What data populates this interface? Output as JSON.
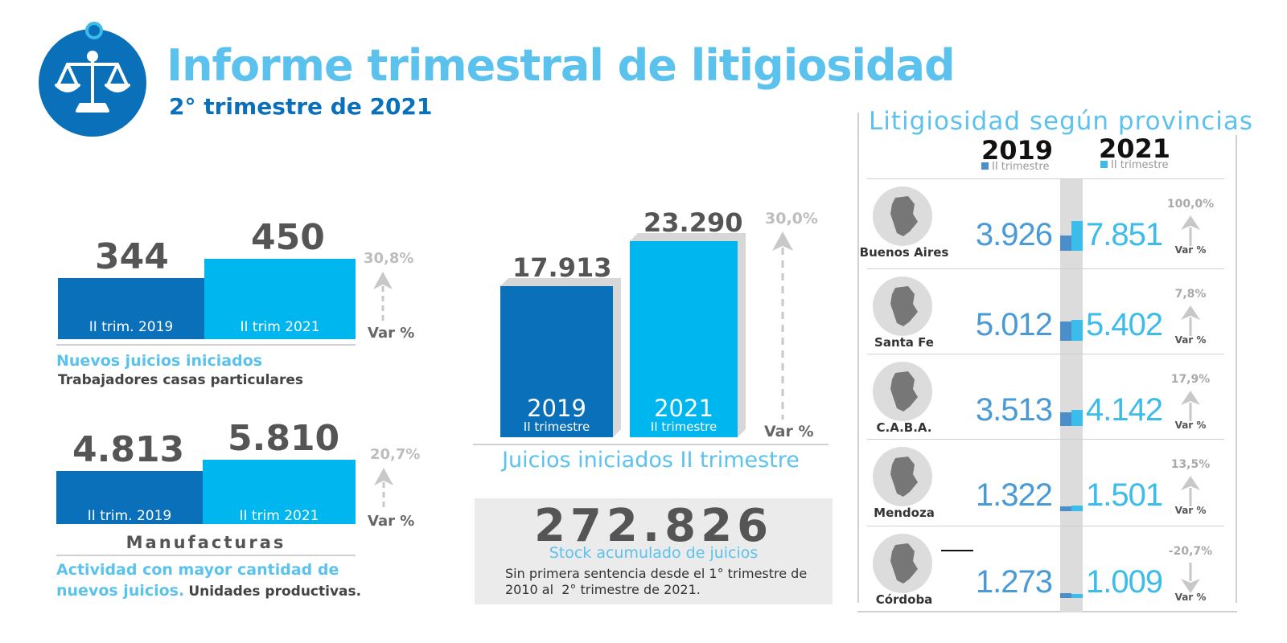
{
  "header": {
    "title": "Informe trimestral de litigiosidad",
    "subtitle": "2° trimestre de 2021"
  },
  "colors": {
    "dark_blue": "#0a70b9",
    "light_blue": "#00b6ef",
    "gray_text": "#555555",
    "pct_gray": "#bdbdbd"
  },
  "chart_data": [
    {
      "type": "bar",
      "categories": [
        "II trim. 2019",
        "II trim 2021"
      ],
      "values": [
        344,
        450
      ],
      "value_labels": [
        "344",
        "450"
      ],
      "variation": "30,8%",
      "variation_label": "Var %",
      "title": "Nuevos juicios iniciados",
      "subtitle": "Trabajadores casas particulares"
    },
    {
      "type": "bar",
      "categories": [
        "II trim. 2019",
        "II trim 2021"
      ],
      "values": [
        4813,
        5810
      ],
      "value_labels": [
        "4.813",
        "5.810"
      ],
      "variation": "20,7%",
      "variation_label": "Var %",
      "title": "Manufacturas",
      "caption_blue": "Actividad con mayor cantidad de nuevos juicios.",
      "caption_blue_line1": "Actividad con mayor cantidad de",
      "caption_blue_line2": "nuevos juicios.",
      "caption_dark": "Unidades productivas."
    },
    {
      "type": "bar",
      "categories": [
        "2019",
        "2021"
      ],
      "category_sublabels": [
        "II trimestre",
        "II trimestre"
      ],
      "values": [
        17913,
        23290
      ],
      "value_labels": [
        "17.913",
        "23.290"
      ],
      "variation": "30,0%",
      "variation_label": "Var %",
      "title": "Juicios iniciados II trimestre"
    },
    {
      "type": "table",
      "title": "Litigiosidad según provincias",
      "columns": [
        "2019",
        "2021"
      ],
      "column_sublabels": [
        "II trimestre",
        "II trimestre"
      ],
      "rows": [
        {
          "province": "Buenos Aires",
          "v2019": 3926,
          "v2021": 7851,
          "label2019": "3.926",
          "label2021": "7.851",
          "variation": "100,0%",
          "direction": "up",
          "var_label": "Var %"
        },
        {
          "province": "Santa Fe",
          "v2019": 5012,
          "v2021": 5402,
          "label2019": "5.012",
          "label2021": "5.402",
          "variation": "7,8%",
          "direction": "up",
          "var_label": "Var %"
        },
        {
          "province": "C.A.B.A.",
          "v2019": 3513,
          "v2021": 4142,
          "label2019": "3.513",
          "label2021": "4.142",
          "variation": "17,9%",
          "direction": "up",
          "var_label": "Var %"
        },
        {
          "province": "Mendoza",
          "v2019": 1322,
          "v2021": 1501,
          "label2019": "1.322",
          "label2021": "1.501",
          "variation": "13,5%",
          "direction": "up",
          "var_label": "Var %"
        },
        {
          "province": "Córdoba",
          "v2019": 1273,
          "v2021": 1009,
          "label2019": "1.273",
          "label2021": "1.009",
          "variation": "-20,7%",
          "direction": "down",
          "var_label": "Var %"
        }
      ]
    }
  ],
  "stock": {
    "value": "272.826",
    "title": "Stock acumulado de juicios",
    "line1": "Sin primera sentencia desde el 1° trimestre de",
    "line2": "2010 al  2° trimestre de 2021."
  },
  "icons": {
    "logo": "scales-of-justice-icon",
    "up": "arrow-up-icon",
    "down": "arrow-down-icon",
    "province": "province-map-icon"
  }
}
